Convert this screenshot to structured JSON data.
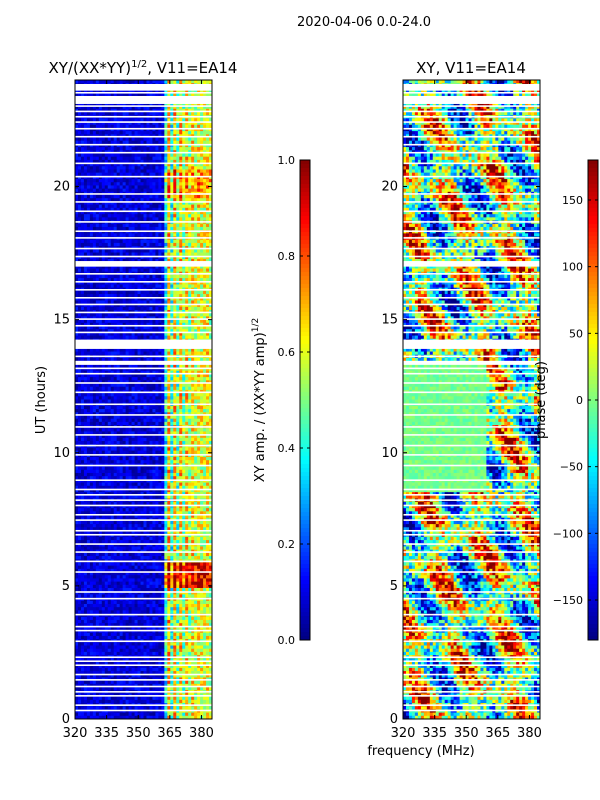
{
  "suptitle": "2020-04-06 0.0-24.0",
  "xlabel_shared": "frequency (MHz)",
  "chart_data": [
    {
      "type": "heatmap",
      "id": "amp",
      "title_main": "XY/(XX*YY)",
      "title_sup": "1/2",
      "title_tail": ", V11=EA14",
      "ylabel": "UT (hours)",
      "xlim": [
        320,
        385
      ],
      "ylim": [
        0,
        24
      ],
      "xticks": [
        320,
        335,
        350,
        365,
        380
      ],
      "xtick_labels": [
        "320",
        "335",
        "350",
        "365",
        "380"
      ],
      "yticks": [
        0,
        5,
        10,
        15,
        20
      ],
      "ytick_labels": [
        "0",
        "5",
        "10",
        "15",
        "20"
      ],
      "colormap": "jet",
      "colorbar": {
        "range": [
          0.0,
          1.0
        ],
        "ticks": [
          0.0,
          0.2,
          0.4,
          0.6,
          0.8,
          1.0
        ],
        "tick_labels": [
          "0.0",
          "0.2",
          "0.4",
          "0.6",
          "0.8",
          "1.0"
        ],
        "label_main": "XY amp. / (XX*YY amp)",
        "label_sup": "1/2"
      },
      "description_values": {
        "background": 0.05,
        "active_band_low_mhz": 364,
        "active_band_high_mhz": 383,
        "peak_hours": [
          5,
          5.8
        ]
      }
    },
    {
      "type": "heatmap",
      "id": "phase",
      "title_main": "XY, V11=EA14",
      "ylabel": "",
      "xlim": [
        320,
        385
      ],
      "ylim": [
        0,
        24
      ],
      "xticks": [
        320,
        335,
        350,
        365,
        380
      ],
      "xtick_labels": [
        "320",
        "335",
        "350",
        "365",
        "380"
      ],
      "yticks": [
        0,
        5,
        10,
        15,
        20
      ],
      "ytick_labels": [
        "0",
        "5",
        "10",
        "15",
        "20"
      ],
      "colormap": "jet",
      "colorbar": {
        "range": [
          -180,
          180
        ],
        "ticks": [
          -150,
          -100,
          -50,
          0,
          50,
          100,
          150
        ],
        "tick_labels": [
          "−150",
          "−100",
          "−50",
          "0",
          "50",
          "100",
          "150"
        ],
        "label_main": "phase (deg)"
      }
    }
  ],
  "gaps_hours": [
    0.35,
    0.55,
    0.9,
    1.05,
    1.25,
    1.5,
    1.7,
    2.05,
    2.2,
    2.35,
    2.95,
    3.35,
    3.5,
    3.95,
    4.55,
    4.8,
    5.55,
    5.95,
    6.3,
    6.6,
    6.95,
    7.1,
    7.5,
    7.7,
    8.05,
    8.25,
    8.45,
    8.65,
    9.0,
    9.55,
    9.95,
    10.3,
    10.7,
    11.0,
    11.45,
    11.85,
    12.3,
    12.65,
    13.0,
    13.2,
    13.45,
    13.65,
    14.05,
    14.25,
    14.55,
    14.8,
    15.05,
    15.3,
    15.6,
    15.85,
    16.15,
    16.45,
    16.75,
    17.05,
    17.4,
    17.7,
    18.1,
    18.35,
    18.7,
    19.1,
    19.45,
    19.75,
    20.4,
    20.9,
    21.3,
    21.6,
    21.9,
    22.2,
    22.45,
    22.65,
    22.85,
    23.05,
    23.3,
    23.55
  ],
  "wide_gaps_hours": [
    [
      13.9,
      14.2
    ],
    [
      17.0,
      17.2
    ],
    [
      23.1,
      23.4
    ],
    [
      23.6,
      23.85
    ],
    [
      13.3,
      13.45
    ]
  ]
}
